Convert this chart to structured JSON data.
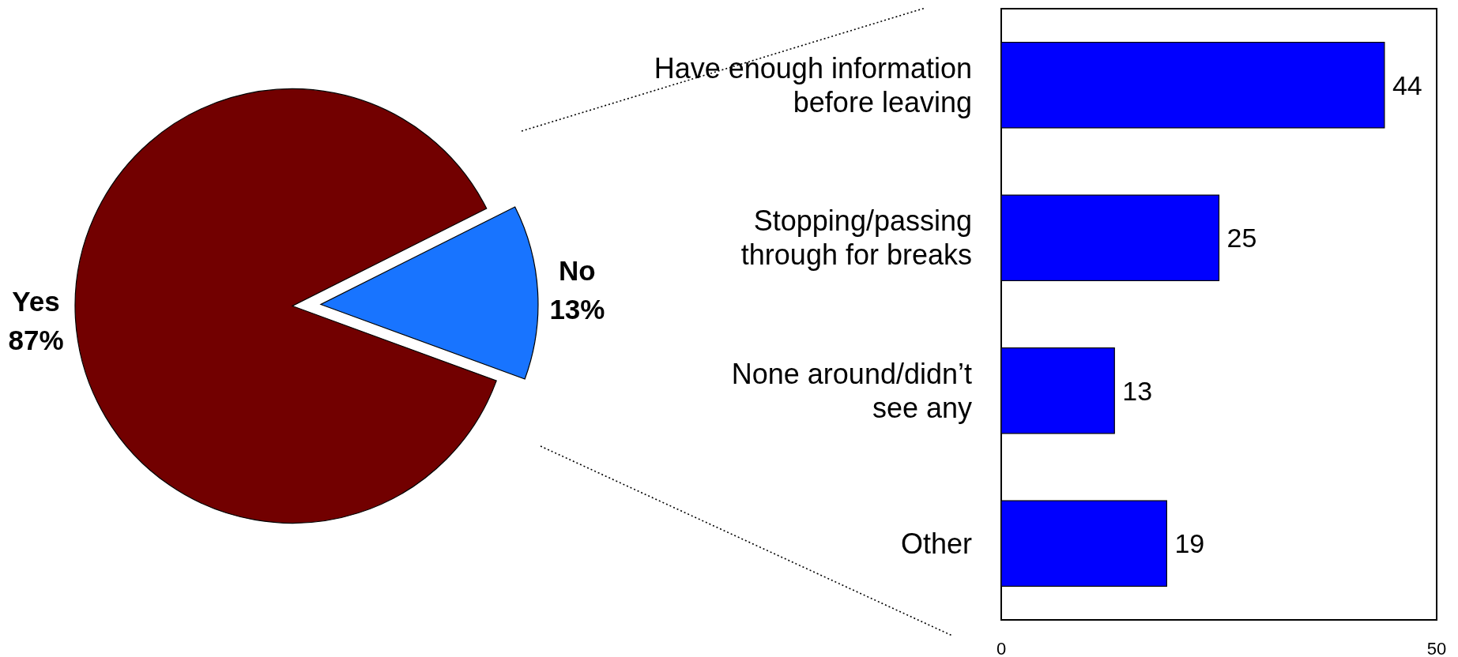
{
  "chart_data": [
    {
      "type": "pie",
      "categories": [
        "Yes",
        "No"
      ],
      "values": [
        87,
        13
      ],
      "colors": [
        "#720000",
        "#1874ff"
      ],
      "value_labels": [
        "87%",
        "13%"
      ]
    },
    {
      "type": "bar",
      "orientation": "horizontal",
      "categories": [
        "Have enough information\nbefore leaving",
        "Stopping/passing\nthrough for breaks",
        "None around/didn’t\nsee any",
        "Other"
      ],
      "values": [
        44,
        25,
        13,
        19
      ],
      "color": "#0000ff",
      "xlim": [
        0,
        50
      ],
      "xticks": [
        0,
        50
      ],
      "data_labels": true
    }
  ]
}
